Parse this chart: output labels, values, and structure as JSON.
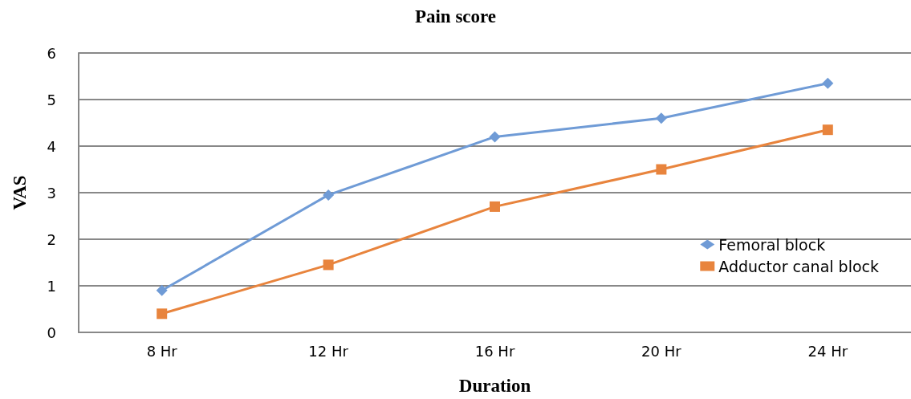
{
  "chart_data": {
    "type": "line",
    "title": "Pain score",
    "xlabel": "Duration",
    "ylabel": "VAS",
    "categories": [
      "8 Hr",
      "12 Hr",
      "16 Hr",
      "20 Hr",
      "24 Hr"
    ],
    "series": [
      {
        "name": "Femoral block",
        "color": "#6f9bd6",
        "marker": "diamond",
        "values": [
          0.9,
          2.95,
          4.2,
          4.6,
          5.35
        ]
      },
      {
        "name": "Adductor canal block",
        "color": "#e8843d",
        "marker": "square",
        "values": [
          0.4,
          1.45,
          2.7,
          3.5,
          4.35
        ]
      }
    ],
    "ylim": [
      0,
      6
    ],
    "yticks": [
      0,
      1,
      2,
      3,
      4,
      5,
      6
    ],
    "grid": "y",
    "legend": "right"
  }
}
